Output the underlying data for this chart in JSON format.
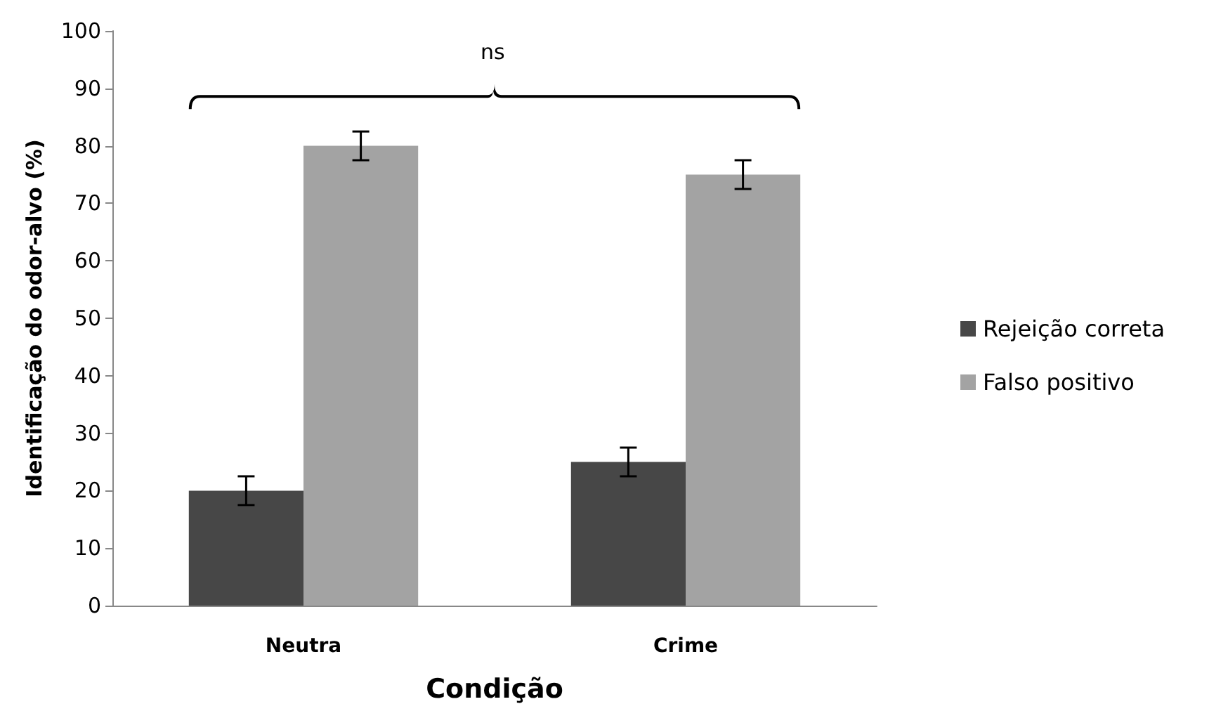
{
  "chart_data": {
    "type": "bar",
    "xlabel": "Condição",
    "ylabel": "Identificação do odor-alvo (%)",
    "categories": [
      "Neutra",
      "Crime"
    ],
    "series": [
      {
        "name": "Rejeição correta",
        "color": "#474747",
        "values": [
          20,
          25
        ],
        "errors": [
          2.5,
          2.5
        ]
      },
      {
        "name": "Falso positivo",
        "color": "#a3a3a3",
        "values": [
          80,
          75
        ],
        "errors": [
          2.5,
          2.5
        ]
      }
    ],
    "ylim": [
      0,
      100
    ],
    "yticks": [
      0,
      10,
      20,
      30,
      40,
      50,
      60,
      70,
      80,
      90,
      100
    ],
    "grid": false,
    "legend": "right",
    "annotations": [
      "ns"
    ]
  }
}
